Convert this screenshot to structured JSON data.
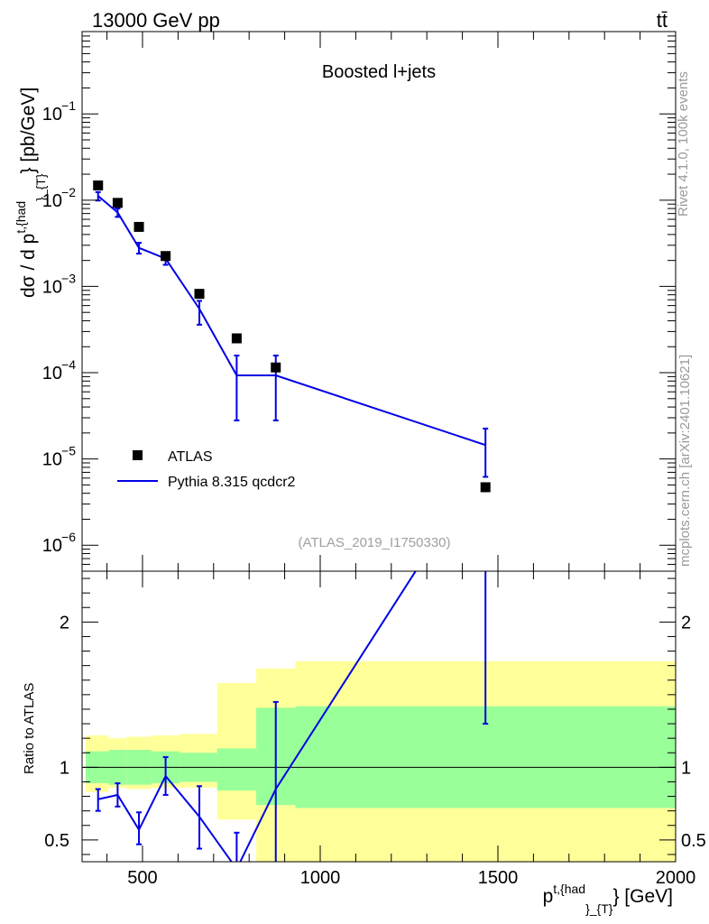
{
  "header": {
    "energy_label": "13000 GeV pp",
    "process_label": "tt̄"
  },
  "side": {
    "rivet_label": "Rivet 4.1.0,  100k events",
    "mcplots_label": "mcplots.cern.ch [arXiv:2401.10621]"
  },
  "colors": {
    "mc": "#0000e6",
    "data": "#000000",
    "band_inner": "#99ff99",
    "band_outer": "#ffff99",
    "watermark": "#a0a0a0"
  },
  "chart_data": [
    {
      "type": "scatter",
      "scale": "log",
      "title": "Boosted l+jets",
      "watermark": "(ATLAS_2019_I1750330)",
      "ylabel": "dσ / d p^{t,{had}}_{T} [pb/GeV]",
      "ylabel_parts": {
        "main": "dσ / d p",
        "sup": "t,{had",
        "sub": "}_{T}",
        "tail": "} [pb/GeV]"
      },
      "ylim": [
        5e-07,
        0.9
      ],
      "xlim": [
        330,
        2000
      ],
      "yticks": [
        {
          "v": 1e-06,
          "base": "10",
          "exp": "−6"
        },
        {
          "v": 1e-05,
          "base": "10",
          "exp": "−5"
        },
        {
          "v": 0.0001,
          "base": "10",
          "exp": "−4"
        },
        {
          "v": 0.001,
          "base": "10",
          "exp": "−3"
        },
        {
          "v": 0.01,
          "base": "10",
          "exp": "−2"
        },
        {
          "v": 0.1,
          "base": "10",
          "exp": "−1"
        }
      ],
      "legend": [
        {
          "name": "ATLAS",
          "marker": "square"
        },
        {
          "name": "Pythia 8.315 qcdcr2",
          "marker": "line"
        }
      ],
      "series": [
        {
          "name": "ATLAS",
          "x": [
            375,
            430,
            490,
            565,
            660,
            765,
            875,
            1465
          ],
          "y": [
            0.0148,
            0.0093,
            0.0049,
            0.00225,
            0.00082,
            0.00025,
            0.000115,
            4.7e-06
          ]
        },
        {
          "name": "Pythia 8.315 qcdcr2",
          "x": [
            375,
            430,
            490,
            565,
            660,
            765,
            875,
            1465
          ],
          "y": [
            0.0112,
            0.0072,
            0.0028,
            0.0021,
            0.00055,
            9.3e-05,
            9.3e-05,
            1.45e-05
          ],
          "yerr_low": [
            0.0099,
            0.0064,
            0.0024,
            0.00178,
            0.00036,
            2.8e-05,
            2.8e-05,
            6.2e-06
          ],
          "yerr_high": [
            0.0124,
            0.008,
            0.0032,
            0.00242,
            0.00068,
            0.000158,
            0.000158,
            2.25e-05
          ]
        }
      ]
    },
    {
      "type": "line",
      "ylabel": "Ratio to ATLAS",
      "xlabel": "p^{t,{had}}_{T} [GeV]",
      "xlabel_parts": {
        "main": "p",
        "sup": "t,{had",
        "sub": "}_{T}",
        "tail": "} [GeV]"
      },
      "xlim": [
        330,
        2000
      ],
      "ylim": [
        0.35,
        2.35
      ],
      "xticks": [
        500,
        1000,
        1500,
        2000
      ],
      "xtick_labels": [
        "500",
        "1000",
        "1500",
        "2000"
      ],
      "yticks": [
        0.5,
        1,
        2
      ],
      "ytick_labels": [
        "0.5",
        "1",
        "2"
      ],
      "bands": {
        "edges": [
          340,
          405,
          455,
          525,
          605,
          710,
          820,
          930,
          2000
        ],
        "inner_low": [
          0.89,
          0.88,
          0.88,
          0.89,
          0.9,
          0.84,
          0.74,
          0.72
        ],
        "inner_high": [
          1.11,
          1.12,
          1.12,
          1.11,
          1.1,
          1.13,
          1.41,
          1.42
        ],
        "outer_low": [
          0.83,
          0.86,
          0.85,
          0.86,
          0.86,
          0.64,
          0.31,
          0.31
        ],
        "outer_high": [
          1.22,
          1.2,
          1.21,
          1.22,
          1.23,
          1.58,
          1.68,
          1.73
        ]
      },
      "series": [
        {
          "name": "Pythia 8.315 qcdcr2",
          "x": [
            375,
            430,
            490,
            565,
            660,
            765,
            875,
            1465
          ],
          "y": [
            0.78,
            0.81,
            0.57,
            0.94,
            0.66,
            0.3,
            0.85,
            3.1
          ],
          "yerr_low": [
            0.7,
            0.73,
            0.47,
            0.81,
            0.44,
            0.1,
            0.24,
            1.3
          ],
          "yerr_high": [
            0.85,
            0.89,
            0.69,
            1.07,
            0.87,
            0.55,
            1.45,
            4.6
          ]
        }
      ]
    }
  ]
}
